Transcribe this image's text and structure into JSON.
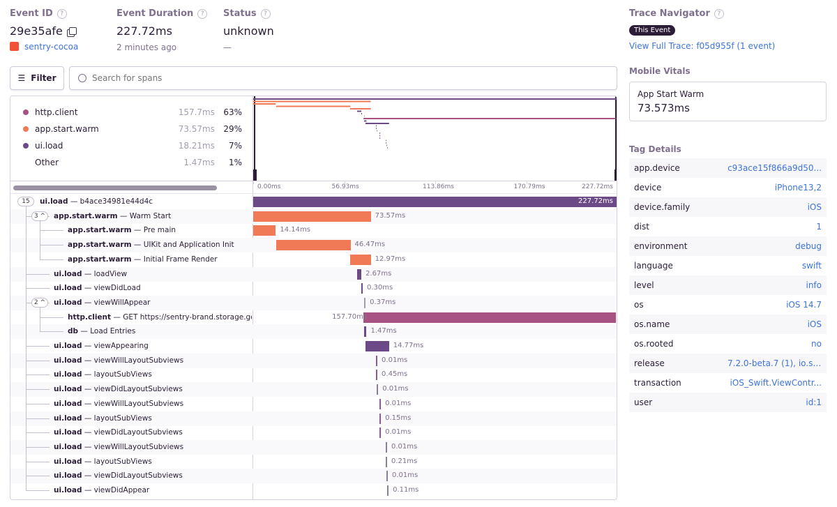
{
  "header": {
    "event_id_label": "Event ID",
    "event_id": "29e35afe",
    "project": "sentry-cocoa",
    "duration_label": "Event Duration",
    "duration": "227.72ms",
    "time_ago": "2 minutes ago",
    "status_label": "Status",
    "status": "unknown",
    "status_sub": "—"
  },
  "toolbar": {
    "filter_label": "Filter",
    "search_placeholder": "Search for spans"
  },
  "ops_legend": [
    {
      "op": "http.client",
      "duration": "157.7ms",
      "percent": "63%",
      "color": "#a85284"
    },
    {
      "op": "app.start.warm",
      "duration": "73.57ms",
      "percent": "29%",
      "color": "#f07a55"
    },
    {
      "op": "ui.load",
      "duration": "18.21ms",
      "percent": "7%",
      "color": "#6c4a87"
    },
    {
      "op": "Other",
      "duration": "1.47ms",
      "percent": "1%",
      "color": ""
    }
  ],
  "axis_ticks": [
    "0.00ms",
    "56.93ms",
    "113.86ms",
    "170.79ms",
    "227.72ms"
  ],
  "total_ms": 227.72,
  "spans": [
    {
      "op": "ui.load",
      "desc": "b4ace34981e44d4c",
      "depth": 0,
      "children": "15",
      "start_ms": 0,
      "duration_ms": 227.72,
      "duration": "227.72ms",
      "color": "#6c4a87"
    },
    {
      "op": "app.start.warm",
      "desc": "Warm Start",
      "depth": 1,
      "children": "3 ^",
      "start_ms": 0,
      "duration_ms": 73.57,
      "duration": "73.57ms",
      "color": "#f07a55"
    },
    {
      "op": "app.start.warm",
      "desc": "Pre main",
      "depth": 2,
      "start_ms": 0,
      "duration_ms": 14.14,
      "duration": "14.14ms",
      "color": "#f07a55"
    },
    {
      "op": "app.start.warm",
      "desc": "UIKit and Application Init",
      "depth": 2,
      "start_ms": 14.4,
      "duration_ms": 46.47,
      "duration": "46.47ms",
      "color": "#f07a55"
    },
    {
      "op": "app.start.warm",
      "desc": "Initial Frame Render",
      "depth": 2,
      "start_ms": 60.6,
      "duration_ms": 12.97,
      "duration": "12.97ms",
      "color": "#f07a55"
    },
    {
      "op": "ui.load",
      "desc": "loadView",
      "depth": 1,
      "start_ms": 65.0,
      "duration_ms": 2.67,
      "duration": "2.67ms",
      "color": "#6c4a87"
    },
    {
      "op": "ui.load",
      "desc": "viewDidLoad",
      "depth": 1,
      "start_ms": 67.6,
      "duration_ms": 0.3,
      "duration": "0.30ms",
      "color": "#6c4a87"
    },
    {
      "op": "ui.load",
      "desc": "viewWillAppear",
      "depth": 1,
      "children": "2 ^",
      "start_ms": 69.4,
      "duration_ms": 0.37,
      "duration": "0.37ms",
      "color": "#a59cb0"
    },
    {
      "op": "http.client",
      "desc": "GET https://sentry-brand.storage.googleapis.com",
      "depth": 2,
      "start_ms": 69.0,
      "duration_ms": 157.7,
      "duration": "157.70ms",
      "color": "#a85284",
      "label_left": true
    },
    {
      "op": "db",
      "desc": "Load Entries",
      "depth": 2,
      "start_ms": 69.4,
      "duration_ms": 1.47,
      "duration": "1.47ms",
      "color": "#6c4a87"
    },
    {
      "op": "ui.load",
      "desc": "viewAppearing",
      "depth": 1,
      "start_ms": 70.2,
      "duration_ms": 14.77,
      "duration": "14.77ms",
      "color": "#6c4a87"
    },
    {
      "op": "ui.load",
      "desc": "viewWillLayoutSubviews",
      "depth": 1,
      "start_ms": 76.8,
      "duration_ms": 0.01,
      "duration": "0.01ms",
      "color": "#8a5a9a"
    },
    {
      "op": "ui.load",
      "desc": "layoutSubViews",
      "depth": 1,
      "start_ms": 76.8,
      "duration_ms": 0.45,
      "duration": "0.45ms",
      "color": "#8a5a9a"
    },
    {
      "op": "ui.load",
      "desc": "viewDidLayoutSubviews",
      "depth": 1,
      "start_ms": 77.3,
      "duration_ms": 0.01,
      "duration": "0.01ms",
      "color": "#8a7f96"
    },
    {
      "op": "ui.load",
      "desc": "viewWillLayoutSubviews",
      "depth": 1,
      "start_ms": 79.0,
      "duration_ms": 0.01,
      "duration": "0.01ms",
      "color": "#8a5a9a"
    },
    {
      "op": "ui.load",
      "desc": "layoutSubViews",
      "depth": 1,
      "start_ms": 79.0,
      "duration_ms": 0.15,
      "duration": "0.15ms",
      "color": "#8a5a9a"
    },
    {
      "op": "ui.load",
      "desc": "viewDidLayoutSubviews",
      "depth": 1,
      "start_ms": 79.0,
      "duration_ms": 0.01,
      "duration": "0.01ms",
      "color": "#8a5a9a"
    },
    {
      "op": "ui.load",
      "desc": "viewWillLayoutSubviews",
      "depth": 1,
      "start_ms": 82.9,
      "duration_ms": 0.01,
      "duration": "0.01ms",
      "color": "#8a7f96"
    },
    {
      "op": "ui.load",
      "desc": "layoutSubViews",
      "depth": 1,
      "start_ms": 82.9,
      "duration_ms": 0.21,
      "duration": "0.21ms",
      "color": "#8a7f96"
    },
    {
      "op": "ui.load",
      "desc": "viewDidLayoutSubviews",
      "depth": 1,
      "start_ms": 83.3,
      "duration_ms": 0.01,
      "duration": "0.01ms",
      "color": "#8a7f96"
    },
    {
      "op": "ui.load",
      "desc": "viewDidAppear",
      "depth": 1,
      "start_ms": 83.8,
      "duration_ms": 0.11,
      "duration": "0.11ms",
      "color": "#8a7f96"
    }
  ],
  "sidebar": {
    "trace_label": "Trace Navigator",
    "this_event": "This Event",
    "view_trace": "View Full Trace: f05d955f (1 event)",
    "vitals_label": "Mobile Vitals",
    "vital_name": "App Start Warm",
    "vital_value": "73.573ms",
    "tags_label": "Tag Details",
    "tags": [
      {
        "k": "app.device",
        "v": "c93ace15f866a9d50..."
      },
      {
        "k": "device",
        "v": "iPhone13,2"
      },
      {
        "k": "device.family",
        "v": "iOS"
      },
      {
        "k": "dist",
        "v": "1"
      },
      {
        "k": "environment",
        "v": "debug"
      },
      {
        "k": "language",
        "v": "swift"
      },
      {
        "k": "level",
        "v": "info"
      },
      {
        "k": "os",
        "v": "iOS 14.7"
      },
      {
        "k": "os.name",
        "v": "iOS"
      },
      {
        "k": "os.rooted",
        "v": "no"
      },
      {
        "k": "release",
        "v": "7.2.0-beta.7 (1), io.se..."
      },
      {
        "k": "transaction",
        "v": "iOS_Swift.ViewContr..."
      },
      {
        "k": "user",
        "v": "id:1"
      }
    ]
  }
}
